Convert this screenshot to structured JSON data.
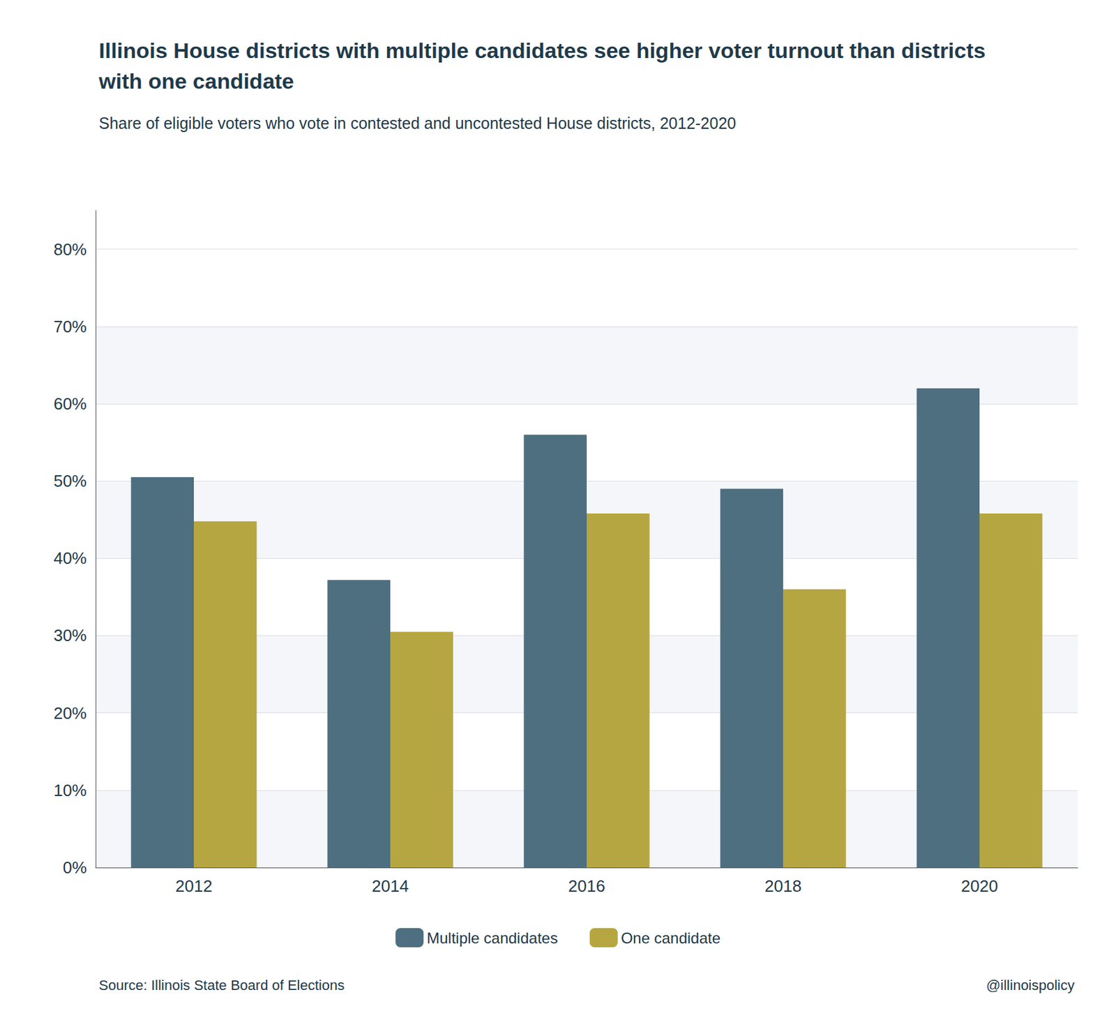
{
  "chart_data": {
    "type": "bar",
    "title": "Illinois House districts with multiple candidates see higher voter turnout than districts with one candidate",
    "subtitle": "Share of eligible voters who vote in contested and uncontested House districts, 2012-2020",
    "source": "Source: Illinois State Board of Elections",
    "watermark": "@illinoispolicy",
    "categories": [
      "2012",
      "2014",
      "2016",
      "2018",
      "2020"
    ],
    "series": [
      {
        "name": "Multiple candidates",
        "color": "#4d6f80",
        "values": [
          0.505,
          0.372,
          0.56,
          0.49,
          0.62
        ]
      },
      {
        "name": "One candidate",
        "color": "#b5a642",
        "values": [
          0.448,
          0.305,
          0.458,
          0.36,
          0.458
        ]
      }
    ],
    "ylim": [
      0,
      0.85
    ],
    "yticks": [
      {
        "value": 0,
        "label": "0%"
      },
      {
        "value": 0.1,
        "label": "10%"
      },
      {
        "value": 0.2,
        "label": "20%"
      },
      {
        "value": 0.3,
        "label": "30%"
      },
      {
        "value": 0.4,
        "label": "40%"
      },
      {
        "value": 0.5,
        "label": "50%"
      },
      {
        "value": 0.6,
        "label": "60%"
      },
      {
        "value": 0.7,
        "label": "70%"
      },
      {
        "value": 0.8,
        "label": "80%"
      }
    ],
    "grid": true,
    "legend": "bottom"
  }
}
